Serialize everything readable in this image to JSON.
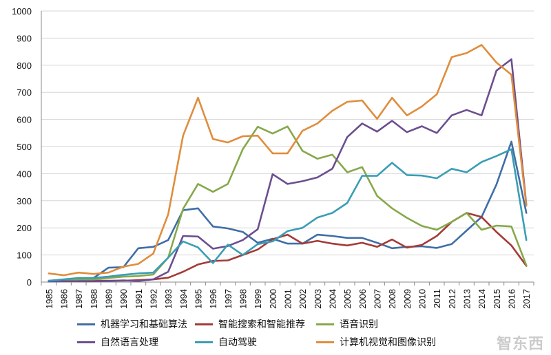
{
  "chart_data": {
    "type": "line",
    "title": "",
    "xlabel": "",
    "ylabel": "",
    "ylim": [
      0,
      1000
    ],
    "yticks": [
      0,
      100,
      200,
      300,
      400,
      500,
      600,
      700,
      800,
      900,
      1000
    ],
    "grid": "horizontal",
    "legend_position": "bottom",
    "categories": [
      "1985",
      "1986",
      "1987",
      "1988",
      "1989",
      "1990",
      "1991",
      "1992",
      "1993",
      "1994",
      "1995",
      "1996",
      "1997",
      "1998",
      "1999",
      "2000",
      "2001",
      "2002",
      "2003",
      "2004",
      "2005",
      "2006",
      "2007",
      "2008",
      "2009",
      "2010",
      "2011",
      "2012",
      "2013",
      "2014",
      "2015",
      "2016",
      "2017"
    ],
    "series": [
      {
        "name": "机器学习和基础算法",
        "color": "#3f6ea6",
        "values": [
          5,
          8,
          12,
          15,
          53,
          55,
          125,
          130,
          155,
          265,
          272,
          205,
          198,
          185,
          145,
          160,
          142,
          142,
          175,
          170,
          163,
          163,
          145,
          125,
          130,
          132,
          126,
          140,
          190,
          240,
          360,
          518,
          255
        ]
      },
      {
        "name": "智能搜索和智能推荐",
        "color": "#a33b37",
        "values": [
          3,
          4,
          5,
          5,
          5,
          5,
          7,
          10,
          16,
          38,
          65,
          78,
          80,
          100,
          120,
          158,
          175,
          142,
          152,
          142,
          135,
          145,
          130,
          157,
          127,
          137,
          170,
          222,
          255,
          240,
          185,
          135,
          60
        ]
      },
      {
        "name": "语音识别",
        "color": "#86a84a",
        "values": [
          3,
          5,
          10,
          10,
          15,
          20,
          22,
          28,
          90,
          270,
          362,
          333,
          362,
          490,
          573,
          548,
          574,
          484,
          455,
          470,
          405,
          424,
          318,
          272,
          237,
          207,
          193,
          222,
          255,
          193,
          208,
          205,
          62
        ]
      },
      {
        "name": "自然语言处理",
        "color": "#6b4e8f",
        "values": [
          2,
          3,
          3,
          3,
          4,
          6,
          4,
          10,
          38,
          170,
          168,
          123,
          133,
          155,
          195,
          398,
          362,
          372,
          386,
          418,
          535,
          585,
          555,
          595,
          553,
          575,
          550,
          615,
          635,
          615,
          780,
          822,
          285
        ]
      },
      {
        "name": "自动驾驶",
        "color": "#3a9db5",
        "values": [
          5,
          10,
          15,
          15,
          20,
          27,
          32,
          35,
          90,
          150,
          128,
          70,
          138,
          100,
          140,
          150,
          188,
          200,
          238,
          255,
          292,
          392,
          392,
          440,
          395,
          393,
          383,
          418,
          405,
          443,
          465,
          490,
          155
        ]
      },
      {
        "name": "计算机视觉和图像识别",
        "color": "#e08d3c",
        "values": [
          32,
          25,
          35,
          30,
          35,
          57,
          67,
          105,
          250,
          540,
          680,
          528,
          515,
          538,
          540,
          475,
          475,
          558,
          585,
          632,
          665,
          670,
          602,
          680,
          615,
          648,
          693,
          830,
          845,
          875,
          810,
          765,
          282
        ]
      }
    ]
  },
  "watermark": "智东西"
}
